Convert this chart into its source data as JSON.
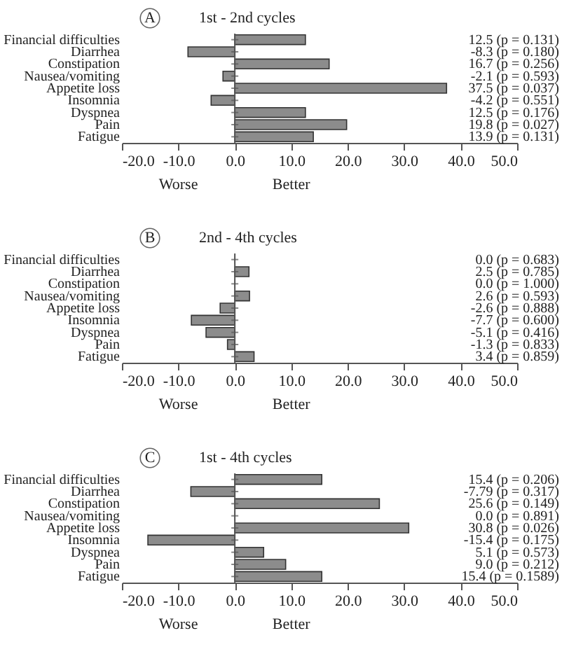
{
  "chart_data": [
    {
      "type": "bar",
      "orientation": "horizontal",
      "title": "1st - 2nd cycles",
      "annotations": [
        "A",
        "Worse",
        "Better"
      ],
      "categories": [
        "Financial difficulties",
        "Diarrhea",
        "Constipation",
        "Nausea/vomiting",
        "Appetite loss",
        "Insomnia",
        "Dyspnea",
        "Pain",
        "Fatigue"
      ],
      "values": [
        12.5,
        -8.3,
        16.7,
        -2.1,
        37.5,
        -4.2,
        12.5,
        19.8,
        13.9
      ],
      "value_labels": [
        "12.5 (p = 0.131)",
        "-8.3 (p = 0.180)",
        "16.7 (p = 0.256)",
        "-2.1 (p = 0.593)",
        "37.5 (p = 0.037)",
        "-4.2 (p = 0.551)",
        "12.5 (p = 0.176)",
        "19.8 (p = 0.027)",
        "13.9 (p = 0.131)"
      ],
      "color": "#8c8c8c",
      "xlim": [
        -20,
        50
      ],
      "xticks": [
        {
          "value": -20,
          "label": "-20.0"
        },
        {
          "value": -10,
          "label": "-10.0"
        },
        {
          "value": 0,
          "label": "0.0"
        },
        {
          "value": 10,
          "label": "10.0"
        },
        {
          "value": 20,
          "label": "20.0"
        },
        {
          "value": 30,
          "label": "30.0"
        },
        {
          "value": 40,
          "label": "40.0"
        },
        {
          "value": 50,
          "label": "50.0"
        }
      ],
      "legend": false
    },
    {
      "type": "bar",
      "orientation": "horizontal",
      "title": "2nd - 4th cycles",
      "annotations": [
        "B",
        "Worse",
        "Better"
      ],
      "categories": [
        "Financial difficulties",
        "Diarrhea",
        "Constipation",
        "Nausea/vomiting",
        "Appetite loss",
        "Insomnia",
        "Dyspnea",
        "Pain",
        "Fatigue"
      ],
      "values": [
        0.0,
        2.5,
        0.0,
        2.6,
        -2.6,
        -7.7,
        -5.1,
        -1.3,
        3.4
      ],
      "value_labels": [
        "0.0 (p = 0.683)",
        "2.5 (p = 0.785)",
        "0.0 (p = 1.000)",
        "2.6 (p = 0.593)",
        "-2.6 (p = 0.888)",
        "-7.7 (p = 0.600)",
        "-5.1 (p = 0.416)",
        "-1.3 (p = 0.833)",
        "3.4 (p = 0.859)"
      ],
      "color": "#8c8c8c",
      "xlim": [
        -20,
        50
      ],
      "xticks": [
        {
          "value": -20,
          "label": "-20.0"
        },
        {
          "value": -10,
          "label": "-10.0"
        },
        {
          "value": 0,
          "label": "0.0"
        },
        {
          "value": 10,
          "label": "10.0"
        },
        {
          "value": 20,
          "label": "20.0"
        },
        {
          "value": 30,
          "label": "30.0"
        },
        {
          "value": 40,
          "label": "40.0"
        },
        {
          "value": 50,
          "label": "50.0"
        }
      ],
      "legend": false
    },
    {
      "type": "bar",
      "orientation": "horizontal",
      "title": "1st - 4th cycles",
      "annotations": [
        "C",
        "Worse",
        "Better"
      ],
      "categories": [
        "Financial difficulties",
        "Diarrhea",
        "Constipation",
        "Nausea/vomiting",
        "Appetite loss",
        "Insomnia",
        "Dyspnea",
        "Pain",
        "Fatigue"
      ],
      "values": [
        15.4,
        -7.79,
        25.6,
        0.0,
        30.8,
        -15.4,
        5.1,
        9.0,
        15.4
      ],
      "value_labels": [
        "15.4 (p = 0.206)",
        "-7.79 (p = 0.317)",
        "25.6 (p = 0.149)",
        "0.0 (p = 0.891)",
        "30.8 (p = 0.026)",
        "-15.4 (p = 0.175)",
        "5.1 (p = 0.573)",
        "9.0 (p = 0.212)",
        "15.4 (p = 0.1589)"
      ],
      "color": "#8c8c8c",
      "xlim": [
        -20,
        50
      ],
      "xticks": [
        {
          "value": -20,
          "label": "-20.0"
        },
        {
          "value": -10,
          "label": "-10.0"
        },
        {
          "value": 0,
          "label": "0.0"
        },
        {
          "value": 10,
          "label": "10.0"
        },
        {
          "value": 20,
          "label": "20.0"
        },
        {
          "value": 30,
          "label": "30.0"
        },
        {
          "value": 40,
          "label": "40.0"
        },
        {
          "value": 50,
          "label": "50.0"
        }
      ],
      "legend": false
    }
  ]
}
